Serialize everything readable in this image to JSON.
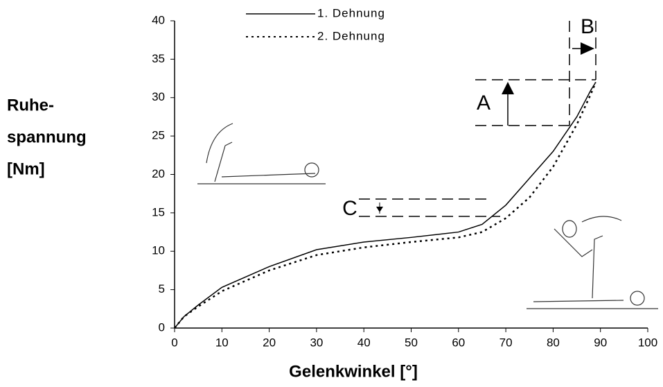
{
  "chart_data": {
    "type": "line",
    "legend": [
      "1. Dehnung",
      "2. Dehnung"
    ],
    "x_label": "Gelenkwinkel [°]",
    "y_label": [
      "Ruhe-",
      "spannung",
      "[Nm]"
    ],
    "annotations": [
      "A",
      "B",
      "C"
    ],
    "x": [
      0,
      2,
      5,
      10,
      20,
      30,
      40,
      50,
      60,
      65,
      70,
      75,
      80,
      85,
      88,
      89
    ],
    "series": [
      {
        "name": "1. Dehnung",
        "color": "#000000",
        "dash": "solid",
        "values": [
          0,
          1.5,
          3,
          5.3,
          8,
          10.2,
          11.2,
          11.8,
          12.5,
          13.5,
          16,
          19.5,
          23,
          27.5,
          31,
          32
        ]
      },
      {
        "name": "2. Dehnung",
        "color": "#000000",
        "dash": "dotted",
        "values": [
          0,
          1.5,
          2.8,
          4.8,
          7.5,
          9.5,
          10.5,
          11.2,
          11.8,
          12.5,
          14.3,
          17,
          21,
          26.5,
          30.5,
          32
        ]
      }
    ],
    "xlim": [
      0,
      100
    ],
    "ylim": [
      0,
      40
    ],
    "xticks": [
      0,
      10,
      20,
      30,
      40,
      50,
      60,
      70,
      80,
      90,
      100
    ],
    "yticks": [
      0,
      5,
      10,
      15,
      20,
      25,
      30,
      35,
      40
    ]
  }
}
